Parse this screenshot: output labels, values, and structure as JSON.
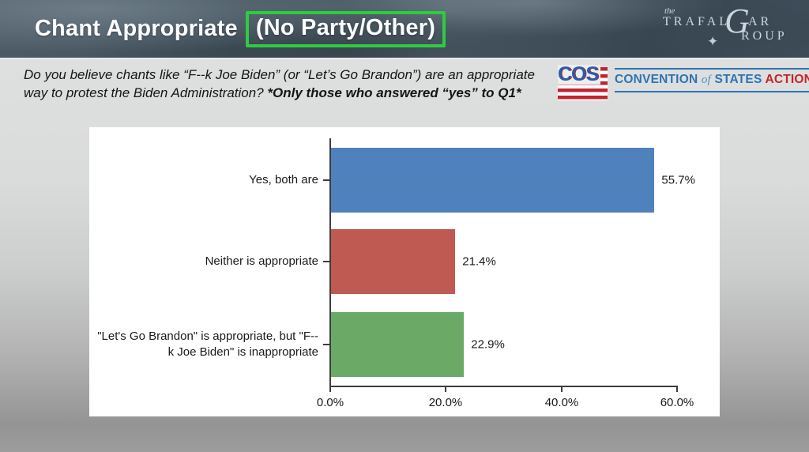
{
  "slide": {
    "title": "Chant Appropriate",
    "title_highlight": "(No Party/Other)",
    "highlight_box_color": "#2ecc3e",
    "question_main": "Do you believe chants like “F--k Joe Biden” (or “Let’s Go Brandon”) are an appropriate way to protest the Biden Administration? ",
    "question_note": "*Only those who answered “yes” to Q1*"
  },
  "logos": {
    "trafalgar": {
      "the": "the",
      "line1_left": "TRAFAL",
      "g": "G",
      "line1_right": "AR",
      "line2": "ROUP",
      "compass": "✦"
    },
    "cos": {
      "acronym": "COS",
      "convention": "CONVENTION",
      "of": "of",
      "states": "STATES",
      "action": "ACTION",
      "blue": "#2d74b4",
      "red": "#c4242e"
    }
  },
  "chart_data": {
    "type": "bar",
    "orientation": "horizontal",
    "title": "",
    "categories": [
      "Yes, both are",
      "Neither is appropriate",
      "\"Let's Go Brandon\" is appropriate, but \"F--k Joe Biden\" is inappropriate"
    ],
    "values": [
      55.7,
      21.4,
      22.9
    ],
    "value_labels": [
      "55.7%",
      "21.4%",
      "22.9%"
    ],
    "bar_colors": [
      "#4f81bd",
      "#bf5a52",
      "#6aa966"
    ],
    "x_ticks": [
      "0.0%",
      "20.0%",
      "40.0%",
      "60.0%"
    ],
    "xlim": [
      0,
      60
    ],
    "grid": false,
    "legend": false
  }
}
